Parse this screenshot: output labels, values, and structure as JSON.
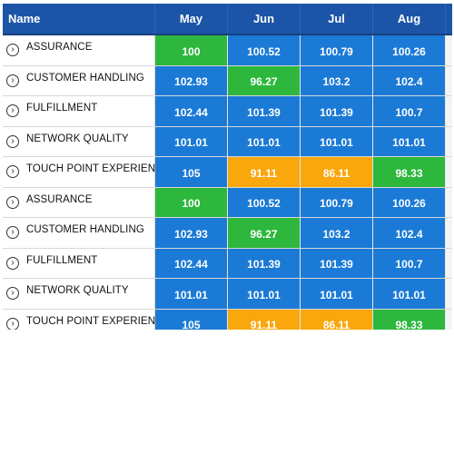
{
  "colors": {
    "header_bg": "#1c55a8",
    "blue": "#1b7ad6",
    "green": "#2db73d",
    "orange": "#f9a70d"
  },
  "header": {
    "name_label": "Name",
    "months": [
      "May",
      "Jun",
      "Jul",
      "Aug"
    ]
  },
  "rows": [
    {
      "name": "ASSURANCE",
      "expander_icon": "chevron-right-circle-icon",
      "values": [
        "100",
        "100.52",
        "100.79",
        "100.26"
      ],
      "colors": [
        "green",
        "blue",
        "blue",
        "blue"
      ]
    },
    {
      "name": "CUSTOMER HANDLING",
      "expander_icon": "chevron-right-circle-icon",
      "values": [
        "102.93",
        "96.27",
        "103.2",
        "102.4"
      ],
      "colors": [
        "blue",
        "green",
        "blue",
        "blue"
      ]
    },
    {
      "name": "FULFILLMENT",
      "expander_icon": "chevron-right-circle-icon",
      "values": [
        "102.44",
        "101.39",
        "101.39",
        "100.7"
      ],
      "colors": [
        "blue",
        "blue",
        "blue",
        "blue"
      ]
    },
    {
      "name": "NETWORK QUALITY",
      "expander_icon": "chevron-right-circle-icon",
      "values": [
        "101.01",
        "101.01",
        "101.01",
        "101.01"
      ],
      "colors": [
        "blue",
        "blue",
        "blue",
        "blue"
      ]
    },
    {
      "name": "TOUCH POINT EXPERIENCE",
      "expander_icon": "chevron-right-circle-icon",
      "values": [
        "105",
        "91.11",
        "86.11",
        "98.33"
      ],
      "colors": [
        "blue",
        "orange",
        "orange",
        "green"
      ]
    },
    {
      "name": "ASSURANCE",
      "expander_icon": "chevron-right-circle-icon",
      "values": [
        "100",
        "100.52",
        "100.79",
        "100.26"
      ],
      "colors": [
        "green",
        "blue",
        "blue",
        "blue"
      ]
    },
    {
      "name": "CUSTOMER HANDLING",
      "expander_icon": "chevron-right-circle-icon",
      "values": [
        "102.93",
        "96.27",
        "103.2",
        "102.4"
      ],
      "colors": [
        "blue",
        "green",
        "blue",
        "blue"
      ]
    },
    {
      "name": "FULFILLMENT",
      "expander_icon": "chevron-right-circle-icon",
      "values": [
        "102.44",
        "101.39",
        "101.39",
        "100.7"
      ],
      "colors": [
        "blue",
        "blue",
        "blue",
        "blue"
      ]
    },
    {
      "name": "NETWORK QUALITY",
      "expander_icon": "chevron-right-circle-icon",
      "values": [
        "101.01",
        "101.01",
        "101.01",
        "101.01"
      ],
      "colors": [
        "blue",
        "blue",
        "blue",
        "blue"
      ]
    },
    {
      "name": "TOUCH POINT EXPERIENCE",
      "expander_icon": "chevron-right-circle-icon",
      "values": [
        "105",
        "91.11",
        "86.11",
        "98.33"
      ],
      "colors": [
        "blue",
        "orange",
        "orange",
        "green"
      ]
    }
  ]
}
